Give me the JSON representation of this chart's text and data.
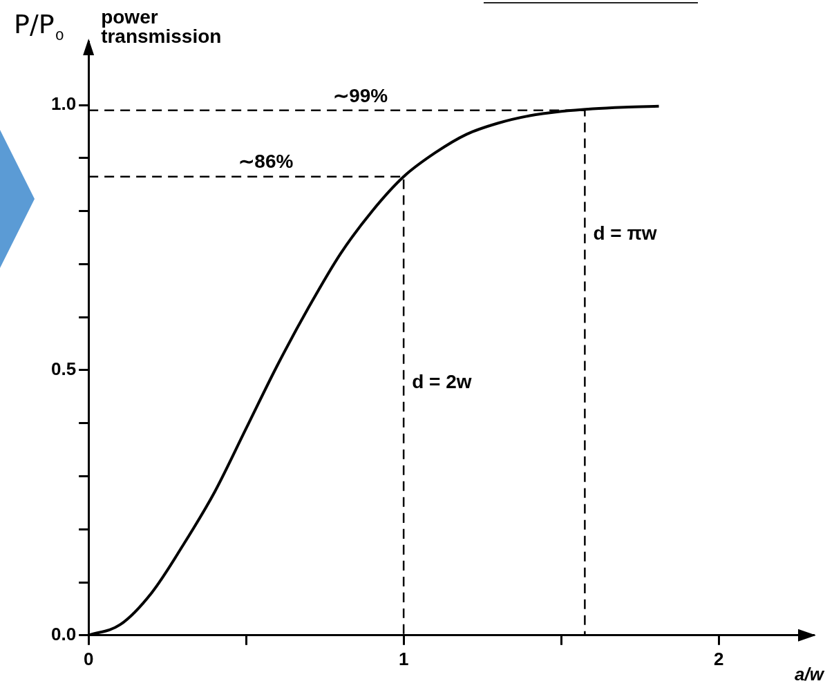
{
  "chart_data": {
    "type": "line",
    "xlabel": "a/w",
    "ylabel": "P/P₀",
    "annotations": [
      "power transmission",
      {
        "text": "∼99%",
        "x": 0.75,
        "y": 0.99
      },
      {
        "text": "∼86%",
        "x": 0.45,
        "y": 0.865
      },
      {
        "text": "d = 2w",
        "x": 1,
        "y": 0.45
      },
      {
        "text": "d = πw",
        "x": 1.575,
        "y": 0.73
      }
    ],
    "xlim": [
      0,
      2.3
    ],
    "xticks": [
      0,
      {
        "value": 0.5,
        "label": null
      },
      1,
      {
        "value": 1.5,
        "label": null
      },
      2
    ],
    "ylim": [
      0,
      1.12
    ],
    "yticks": [
      {
        "value": 0,
        "label": "0.0"
      },
      {
        "value": 0.1,
        "label": null
      },
      {
        "value": 0.2,
        "label": null
      },
      {
        "value": 0.3,
        "label": null
      },
      {
        "value": 0.4,
        "label": null
      },
      {
        "value": 0.5,
        "label": "0.5"
      },
      {
        "value": 0.6,
        "label": null
      },
      {
        "value": 0.7,
        "label": null
      },
      {
        "value": 0.8,
        "label": null
      },
      {
        "value": 0.9,
        "label": null
      },
      {
        "value": 1,
        "label": "1.0"
      }
    ],
    "grid": false,
    "legend": false,
    "marker": "none",
    "series": [
      {
        "type": "line",
        "color": "#000000",
        "line_style": "solid",
        "x": [
          0,
          0.1,
          0.2,
          0.3,
          0.4,
          0.5,
          0.6,
          0.7,
          0.8,
          0.9,
          1.0,
          1.1,
          1.2,
          1.3,
          1.4,
          1.5,
          1.6,
          1.7,
          1.81
        ],
        "values": [
          0,
          0.02,
          0.08,
          0.17,
          0.27,
          0.39,
          0.51,
          0.62,
          0.72,
          0.8,
          0.865,
          0.91,
          0.945,
          0.966,
          0.98,
          0.988,
          0.993,
          0.996,
          0.998
        ]
      },
      {
        "type": "line",
        "color": "#000000",
        "line_style": "dashed",
        "x": [
          0,
          1.575,
          1.575
        ],
        "values": [
          0.99,
          0.99,
          0
        ]
      },
      {
        "type": "line",
        "color": "#000000",
        "line_style": "dashed",
        "x": [
          0,
          1,
          1
        ],
        "values": [
          0.865,
          0.865,
          0
        ]
      }
    ]
  }
}
